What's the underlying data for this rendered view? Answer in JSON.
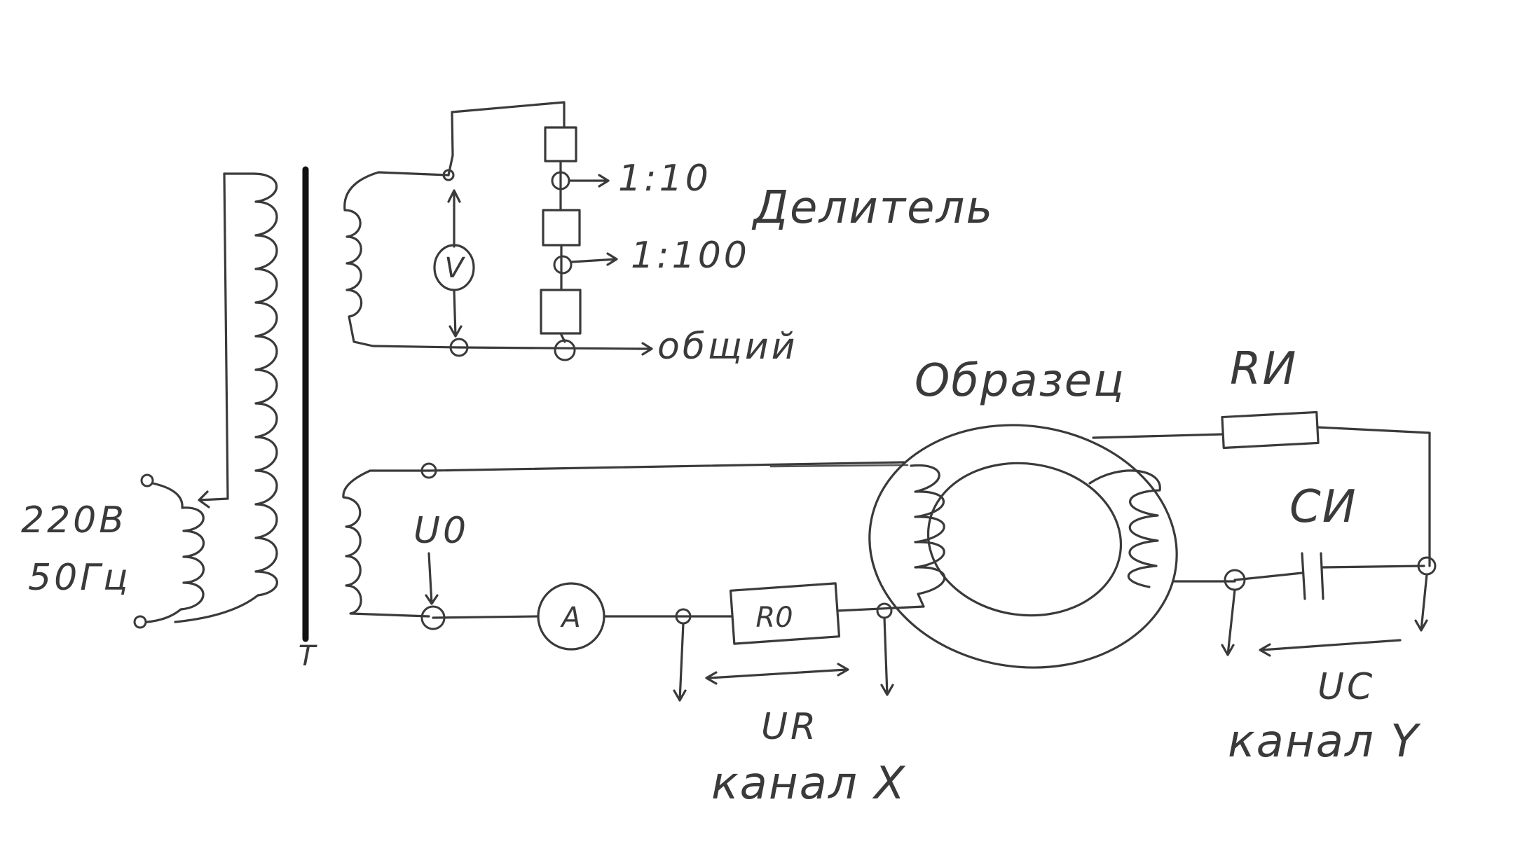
{
  "source": {
    "voltage": "220В",
    "frequency": "50Гц"
  },
  "transformer": {
    "label": "T"
  },
  "divider": {
    "title": "Делитель",
    "tap_1": "1:10",
    "tap_2": "1:100",
    "common": "общий",
    "voltmeter": "V"
  },
  "sample": {
    "label": "Образец"
  },
  "primary": {
    "voltage_label": "U0",
    "ammeter": "A",
    "resistor": "R0",
    "ur_label": "UR",
    "channel_x": "канал X"
  },
  "secondary": {
    "resistor": "RИ",
    "capacitor": "CИ",
    "uc_label": "UC",
    "channel_y": "канал Y"
  },
  "colors": {
    "ink": "#3a3a3a",
    "core": "#111111"
  }
}
